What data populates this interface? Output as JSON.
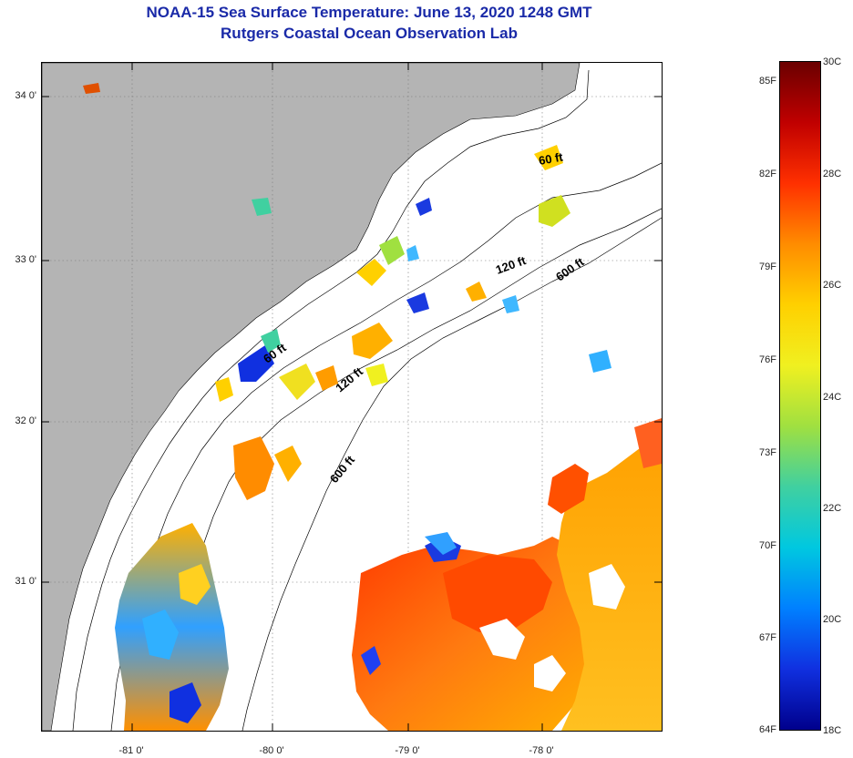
{
  "header": {
    "title": "NOAA-15 Sea Surface Temperature:  June 13, 2020 1248 GMT",
    "subtitle": "Rutgers Coastal Ocean Observation Lab"
  },
  "map": {
    "land_color": "#b4b4b4",
    "no_data_color": "#ffffff",
    "lat_labels": [
      "34 0'",
      "33 0'",
      "32 0'",
      "31 0'"
    ],
    "lon_labels": [
      "-81 0'",
      "-80 0'",
      "-79 0'",
      "-78 0'"
    ],
    "isobath_labels": [
      "60 ft",
      "120 ft",
      "600 ft",
      "60 ft",
      "120 ft",
      "600 ft"
    ]
  },
  "colorbar": {
    "fahrenheit_labels": [
      "85F",
      "82F",
      "79F",
      "76F",
      "73F",
      "70F",
      "67F",
      "64F"
    ],
    "celsius_labels": [
      "30C",
      "28C",
      "26C",
      "24C",
      "22C",
      "20C",
      "18C"
    ],
    "colors": [
      "#6b0000",
      "#c00000",
      "#ff3000",
      "#ff8c00",
      "#ffd000",
      "#f0f020",
      "#a0e040",
      "#40d0a0",
      "#00c8e0",
      "#0080ff",
      "#1030e0",
      "#00008c"
    ]
  }
}
